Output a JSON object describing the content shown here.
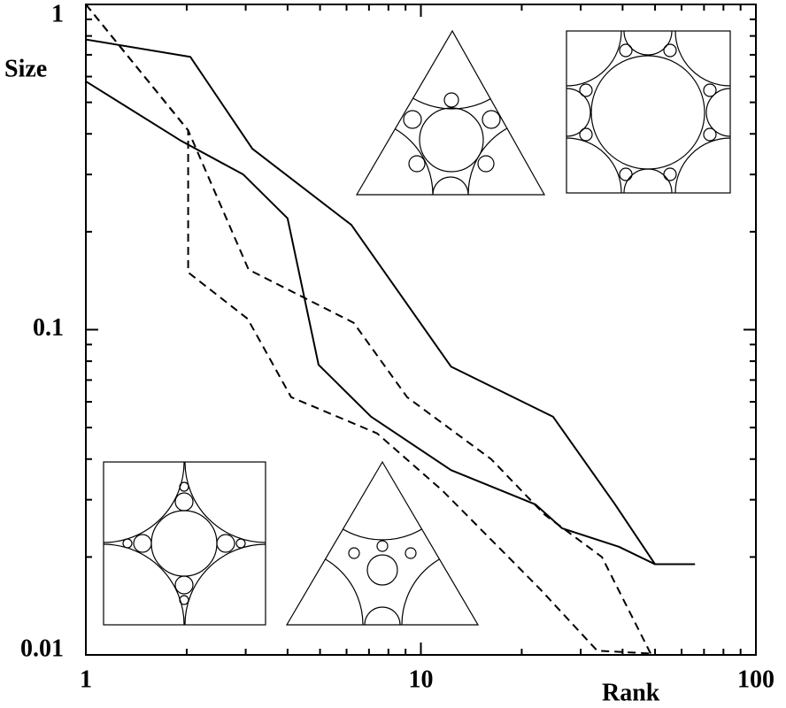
{
  "chart_data": {
    "type": "line",
    "y_label": "Size",
    "x_label": "Rank",
    "xlog": true,
    "ylog": true,
    "xlim": [
      1,
      100
    ],
    "ylim": [
      0.01,
      1
    ],
    "xticks": [
      1,
      10,
      100
    ],
    "yticks": [
      0.01,
      0.1,
      1
    ],
    "xminor": [
      2,
      3,
      4,
      5,
      6,
      7,
      8,
      9,
      20,
      30,
      40,
      50,
      60,
      70,
      80,
      90
    ],
    "yminor": [
      0.02,
      0.03,
      0.04,
      0.05,
      0.06,
      0.07,
      0.08,
      0.09,
      0.2,
      0.3,
      0.4,
      0.5,
      0.6,
      0.7,
      0.8,
      0.9
    ],
    "series": [
      {
        "color": "#000000",
        "dashed": false,
        "x": [
          1,
          2.05,
          3.14,
          6.2,
          12.3,
          24.8,
          38,
          50,
          65.8
        ],
        "values": [
          0.78,
          0.69,
          0.36,
          0.21,
          0.077,
          0.054,
          0.029,
          0.019,
          0.019
        ]
      },
      {
        "color": "#000000",
        "dashed": false,
        "x": [
          1,
          1.93,
          2.95,
          4.0,
          4.95,
          7.1,
          12.3,
          22,
          26.4,
          39,
          50
        ],
        "values": [
          0.58,
          0.38,
          0.3,
          0.22,
          0.078,
          0.054,
          0.037,
          0.029,
          0.0245,
          0.0215,
          0.019
        ]
      },
      {
        "color": "#000000",
        "dashed": true,
        "x": [
          1,
          2.02,
          2.02,
          3.04,
          4.1,
          7.4,
          11.6,
          22.6,
          33.6,
          48.5
        ],
        "values": [
          1,
          0.41,
          0.15,
          0.108,
          0.062,
          0.048,
          0.032,
          0.016,
          0.0103,
          0.0101
        ]
      },
      {
        "color": "#000000",
        "dashed": true,
        "x": [
          1,
          2.02,
          3.06,
          6.3,
          9.1,
          16.2,
          23.4,
          34.7,
          48.5
        ],
        "values": [
          1,
          0.41,
          0.153,
          0.105,
          0.062,
          0.04,
          0.027,
          0.02,
          0.0101
        ]
      }
    ]
  }
}
